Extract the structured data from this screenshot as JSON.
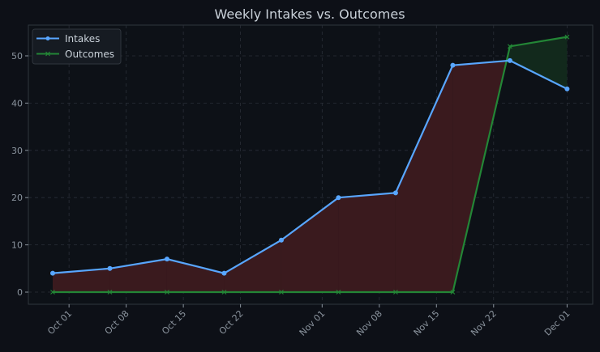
{
  "chart_data": {
    "type": "line",
    "title": "Weekly Intakes vs. Outcomes",
    "xlabel": "",
    "ylabel": "",
    "x": [
      "2024-09-29",
      "2024-10-06",
      "2024-10-13",
      "2024-10-20",
      "2024-10-27",
      "2024-11-03",
      "2024-11-10",
      "2024-11-17",
      "2024-11-24",
      "2024-12-01"
    ],
    "x_ticks": [
      {
        "date": "2024-10-01",
        "label": "Oct 01"
      },
      {
        "date": "2024-10-08",
        "label": "Oct 08"
      },
      {
        "date": "2024-10-15",
        "label": "Oct 15"
      },
      {
        "date": "2024-10-22",
        "label": "Oct 22"
      },
      {
        "date": "2024-11-01",
        "label": "Nov 01"
      },
      {
        "date": "2024-11-08",
        "label": "Nov 08"
      },
      {
        "date": "2024-11-15",
        "label": "Nov 15"
      },
      {
        "date": "2024-11-22",
        "label": "Nov 22"
      },
      {
        "date": "2024-12-01",
        "label": "Dec 01"
      }
    ],
    "y_ticks": [
      0,
      10,
      20,
      30,
      40,
      50
    ],
    "ylim": [
      -2.7,
      56.8
    ],
    "grid": true,
    "legend": "top-left",
    "series": [
      {
        "name": "Intakes",
        "values": [
          4,
          5,
          7,
          4,
          11,
          20,
          21,
          48,
          49,
          43
        ],
        "color": "#58a6ff",
        "marker": "circle"
      },
      {
        "name": "Outcomes",
        "values": [
          0,
          0,
          0,
          0,
          0,
          0,
          0,
          0,
          52,
          54
        ],
        "color": "#238636",
        "marker": "x"
      }
    ],
    "fill_between": {
      "intakes_higher_color": "#3a1a1e",
      "outcomes_higher_color": "#12291c"
    }
  }
}
